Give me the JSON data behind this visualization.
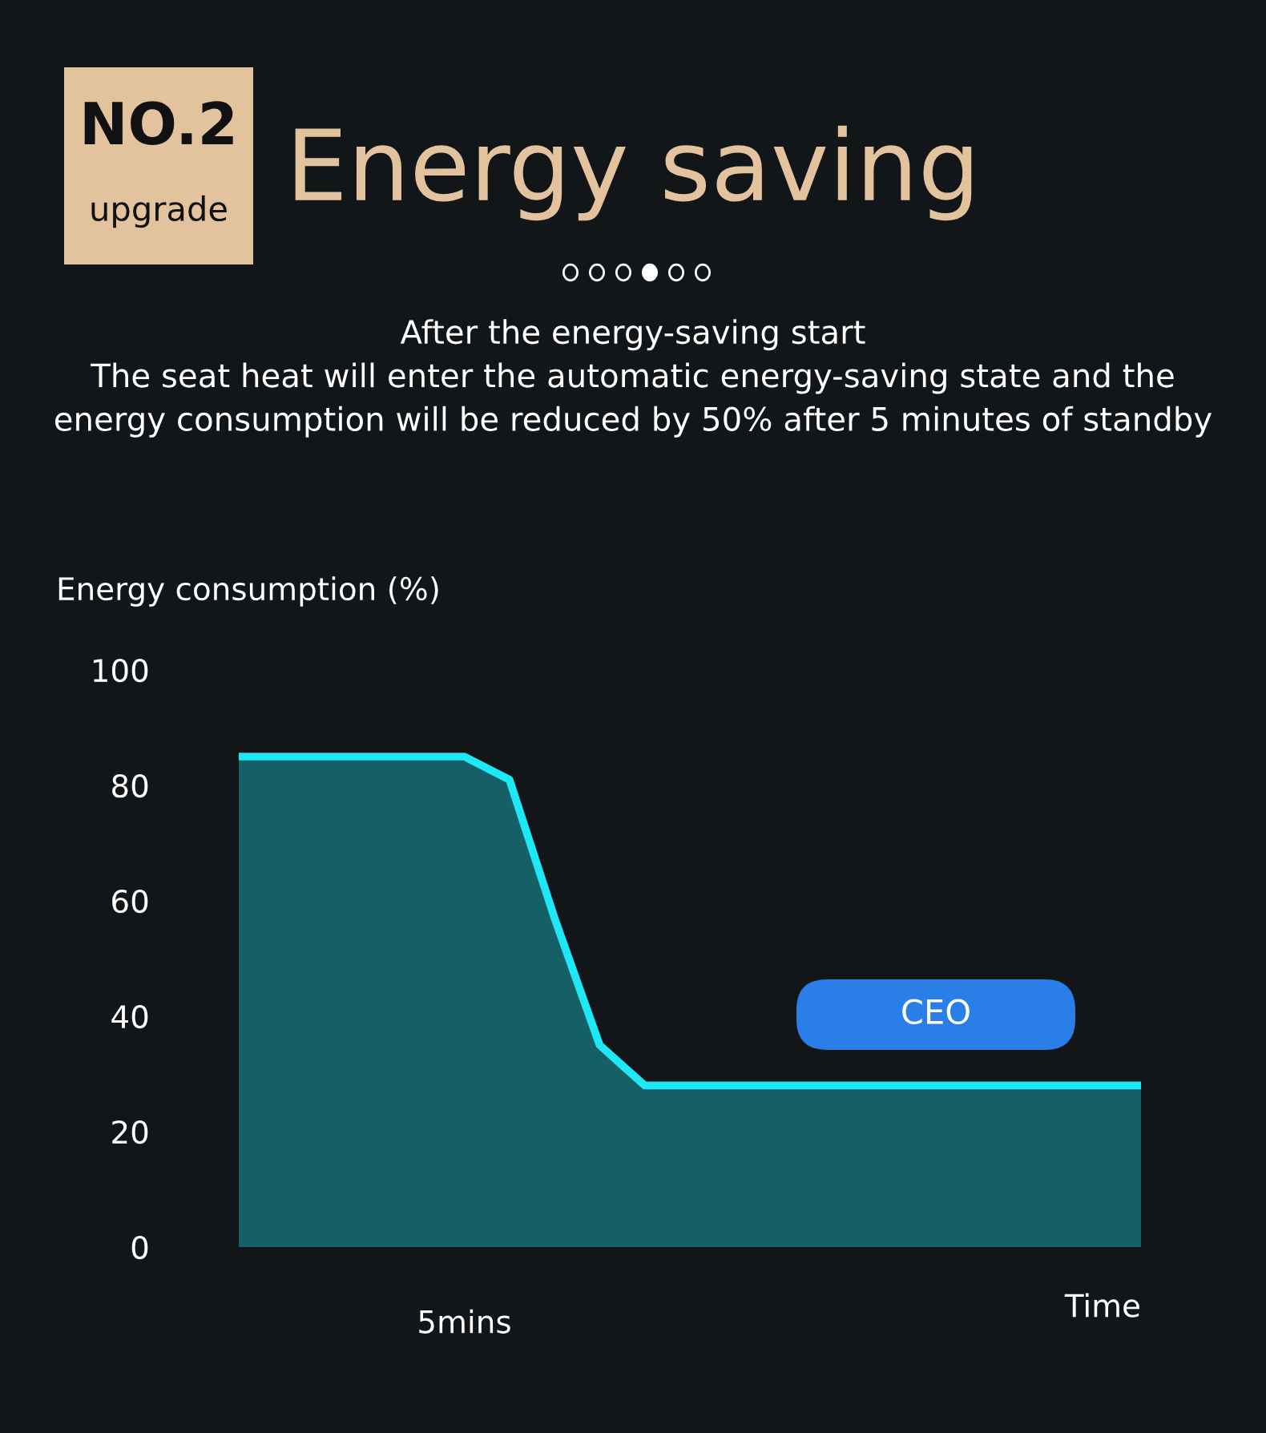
{
  "chart_data": {
    "type": "area",
    "title": "Energy saving",
    "subtitle": "After the energy-saving start\nThe seat heat will enter the automatic energy-saving state and the\nenergy consumption will be reduced by 50% after 5 minutes of standby",
    "annotations": [
      "NO.2",
      "upgrade",
      "CEO"
    ],
    "ylabel": "Energy consumption (%)",
    "xlabel": "Time",
    "categories": [
      null,
      null,
      null,
      null,
      null,
      "5mins",
      null,
      null,
      null,
      null,
      null,
      null,
      null,
      null,
      null,
      null,
      null,
      null,
      null,
      null,
      null
    ],
    "series": [
      {
        "color": "#1ee8f5",
        "values": [
          85,
          85,
          85,
          85,
          85,
          85,
          81,
          57,
          35,
          28,
          28,
          28,
          28,
          28,
          28,
          28,
          28,
          28,
          28,
          28,
          28
        ]
      }
    ],
    "ylim": [
      0,
      100
    ],
    "yticks": [
      0,
      20,
      40,
      60,
      80,
      100
    ],
    "grid": false,
    "legend": false,
    "marker": "none",
    "line_style": "solid"
  }
}
